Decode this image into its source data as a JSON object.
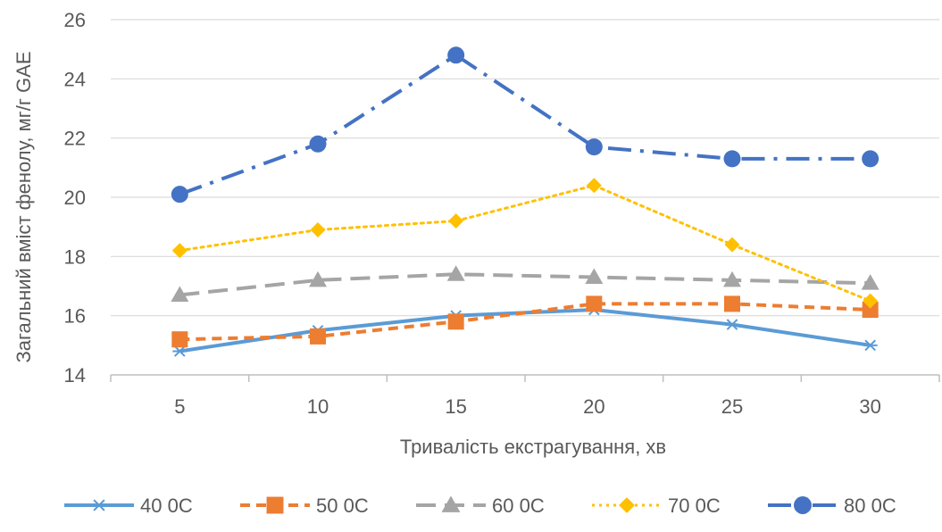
{
  "chart_data": {
    "type": "line",
    "title": "",
    "xlabel": "Тривалість екстрагування, хв",
    "ylabel": "Загальний вміст фенолу, мг/г GAE",
    "categories": [
      "5",
      "10",
      "15",
      "20",
      "25",
      "30"
    ],
    "ylim": [
      14,
      26
    ],
    "yticks": [
      "14",
      "16",
      "18",
      "20",
      "22",
      "24",
      "26"
    ],
    "grid": true,
    "legend_position": "bottom",
    "series": [
      {
        "name": "40 0C",
        "values": [
          14.8,
          15.5,
          16.0,
          16.2,
          15.7,
          15.0
        ],
        "color": "#5B9BD5",
        "marker": "asterisk",
        "dash": "solid"
      },
      {
        "name": "50 0C",
        "values": [
          15.2,
          15.3,
          15.8,
          16.4,
          16.4,
          16.2
        ],
        "color": "#ED7D31",
        "marker": "square",
        "dash": "dash"
      },
      {
        "name": "60 0C",
        "values": [
          16.7,
          17.2,
          17.4,
          17.3,
          17.2,
          17.1
        ],
        "color": "#A5A5A5",
        "marker": "triangle",
        "dash": "longdash"
      },
      {
        "name": "70 0C",
        "values": [
          18.2,
          18.9,
          19.2,
          20.4,
          18.4,
          16.5
        ],
        "color": "#FFC000",
        "marker": "diamond",
        "dash": "dot"
      },
      {
        "name": "80 0C",
        "values": [
          20.1,
          21.8,
          24.8,
          21.7,
          21.3,
          21.3
        ],
        "color": "#4472C4",
        "marker": "circle",
        "dash": "dashdot"
      }
    ]
  }
}
